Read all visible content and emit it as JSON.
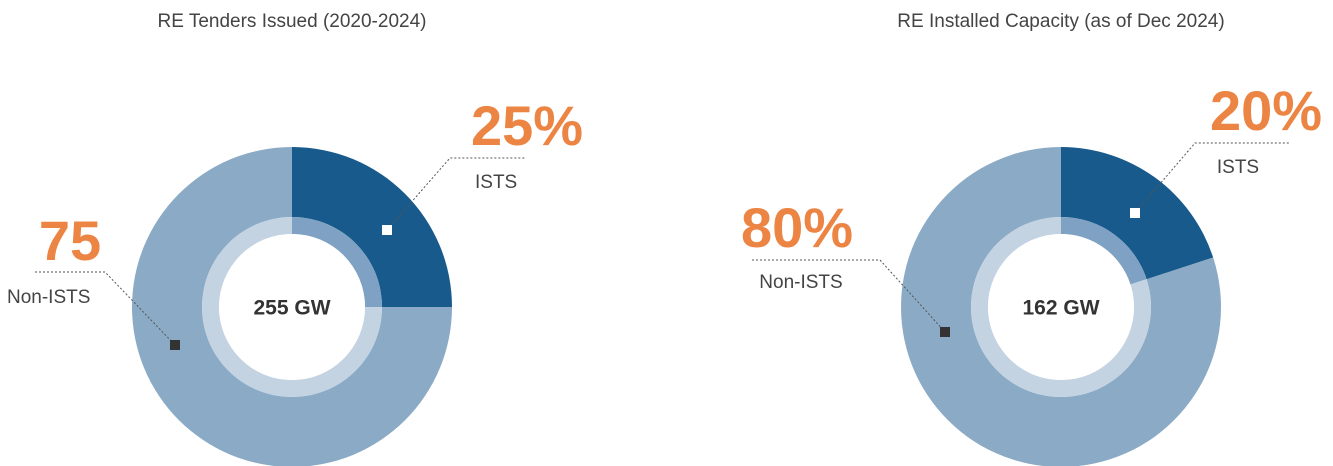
{
  "chart_data": [
    {
      "type": "pie",
      "title": "RE Tenders Issued (2020-2024)",
      "center_label": "255 GW",
      "categories": [
        "ISTS",
        "Non-ISTS"
      ],
      "values": [
        25,
        75
      ],
      "value_labels": [
        "25%",
        "75"
      ],
      "colors": [
        "#185a8c",
        "#8aaac6"
      ]
    },
    {
      "type": "pie",
      "title": "RE Installed Capacity (as of Dec 2024)",
      "center_label": "162 GW",
      "categories": [
        "ISTS",
        "Non-ISTS"
      ],
      "values": [
        20,
        80
      ],
      "value_labels": [
        "20%",
        "80%"
      ],
      "colors": [
        "#185a8c",
        "#8aaac6"
      ]
    }
  ]
}
